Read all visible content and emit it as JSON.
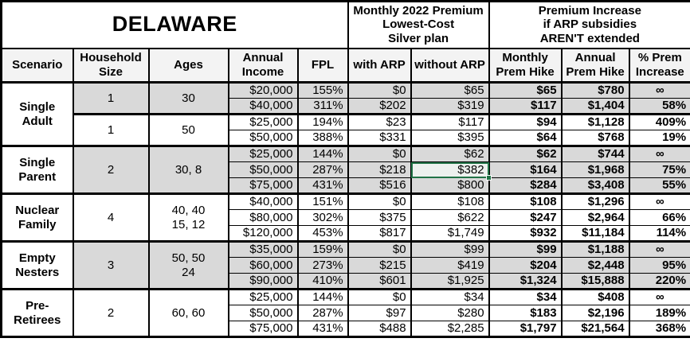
{
  "title": "DELAWARE",
  "header": {
    "premium_group": "Monthly 2022 Premium\nLowest-Cost\nSilver plan",
    "increase_group": "Premium Increase\nif ARP subsidies\nAREN'T extended",
    "columns": [
      "Scenario",
      "Household\nSize",
      "Ages",
      "Annual\nIncome",
      "FPL",
      "with ARP",
      "without ARP",
      "Monthly\nPrem Hike",
      "Annual\nPrem Hike",
      "% Prem\nIncrease"
    ]
  },
  "colors": {
    "shaded_row": "#d9d9d9",
    "header_bg": "#f3f3f3",
    "grid_border": "#000000",
    "selection_green": "#217346"
  },
  "groups": [
    {
      "scenario": "Single\nAdult",
      "subgroups": [
        {
          "household_size": "1",
          "ages": "30",
          "shaded": true,
          "rows": [
            {
              "income": "$20,000",
              "fpl": "155%",
              "with_arp": "$0",
              "without_arp": "$65",
              "monthly_hike": "$65",
              "annual_hike": "$780",
              "pct_increase": "∞"
            },
            {
              "income": "$40,000",
              "fpl": "311%",
              "with_arp": "$202",
              "without_arp": "$319",
              "monthly_hike": "$117",
              "annual_hike": "$1,404",
              "pct_increase": "58%"
            }
          ]
        },
        {
          "household_size": "1",
          "ages": "50",
          "shaded": false,
          "rows": [
            {
              "income": "$25,000",
              "fpl": "194%",
              "with_arp": "$23",
              "without_arp": "$117",
              "monthly_hike": "$94",
              "annual_hike": "$1,128",
              "pct_increase": "409%"
            },
            {
              "income": "$50,000",
              "fpl": "388%",
              "with_arp": "$331",
              "without_arp": "$395",
              "monthly_hike": "$64",
              "annual_hike": "$768",
              "pct_increase": "19%"
            }
          ]
        }
      ]
    },
    {
      "scenario": "Single\nParent",
      "subgroups": [
        {
          "household_size": "2",
          "ages": "30, 8",
          "shaded": true,
          "rows": [
            {
              "income": "$25,000",
              "fpl": "144%",
              "with_arp": "$0",
              "without_arp": "$62",
              "monthly_hike": "$62",
              "annual_hike": "$744",
              "pct_increase": "∞"
            },
            {
              "income": "$50,000",
              "fpl": "287%",
              "with_arp": "$218",
              "without_arp": "$382",
              "monthly_hike": "$164",
              "annual_hike": "$1,968",
              "pct_increase": "75%"
            },
            {
              "income": "$75,000",
              "fpl": "431%",
              "with_arp": "$516",
              "without_arp": "$800",
              "monthly_hike": "$284",
              "annual_hike": "$3,408",
              "pct_increase": "55%"
            }
          ]
        }
      ]
    },
    {
      "scenario": "Nuclear\nFamily",
      "subgroups": [
        {
          "household_size": "4",
          "ages": "40, 40\n15, 12",
          "shaded": false,
          "rows": [
            {
              "income": "$40,000",
              "fpl": "151%",
              "with_arp": "$0",
              "without_arp": "$108",
              "monthly_hike": "$108",
              "annual_hike": "$1,296",
              "pct_increase": "∞"
            },
            {
              "income": "$80,000",
              "fpl": "302%",
              "with_arp": "$375",
              "without_arp": "$622",
              "monthly_hike": "$247",
              "annual_hike": "$2,964",
              "pct_increase": "66%"
            },
            {
              "income": "$120,000",
              "fpl": "453%",
              "with_arp": "$817",
              "without_arp": "$1,749",
              "monthly_hike": "$932",
              "annual_hike": "$11,184",
              "pct_increase": "114%"
            }
          ]
        }
      ]
    },
    {
      "scenario": "Empty\nNesters",
      "subgroups": [
        {
          "household_size": "3",
          "ages": "50, 50\n24",
          "shaded": true,
          "rows": [
            {
              "income": "$35,000",
              "fpl": "159%",
              "with_arp": "$0",
              "without_arp": "$99",
              "monthly_hike": "$99",
              "annual_hike": "$1,188",
              "pct_increase": "∞"
            },
            {
              "income": "$60,000",
              "fpl": "273%",
              "with_arp": "$215",
              "without_arp": "$419",
              "monthly_hike": "$204",
              "annual_hike": "$2,448",
              "pct_increase": "95%"
            },
            {
              "income": "$90,000",
              "fpl": "410%",
              "with_arp": "$601",
              "without_arp": "$1,925",
              "monthly_hike": "$1,324",
              "annual_hike": "$15,888",
              "pct_increase": "220%"
            }
          ]
        }
      ]
    },
    {
      "scenario": "Pre-\nRetirees",
      "subgroups": [
        {
          "household_size": "2",
          "ages": "60, 60",
          "shaded": false,
          "rows": [
            {
              "income": "$25,000",
              "fpl": "144%",
              "with_arp": "$0",
              "without_arp": "$34",
              "monthly_hike": "$34",
              "annual_hike": "$408",
              "pct_increase": "∞"
            },
            {
              "income": "$50,000",
              "fpl": "287%",
              "with_arp": "$97",
              "without_arp": "$280",
              "monthly_hike": "$183",
              "annual_hike": "$2,196",
              "pct_increase": "189%"
            },
            {
              "income": "$75,000",
              "fpl": "431%",
              "with_arp": "$488",
              "without_arp": "$2,285",
              "monthly_hike": "$1,797",
              "annual_hike": "$21,564",
              "pct_increase": "368%"
            }
          ]
        }
      ]
    }
  ],
  "selected_cell": {
    "group_index": 1,
    "subgroup_index": 0,
    "row_index": 1,
    "column": "without_arp"
  }
}
